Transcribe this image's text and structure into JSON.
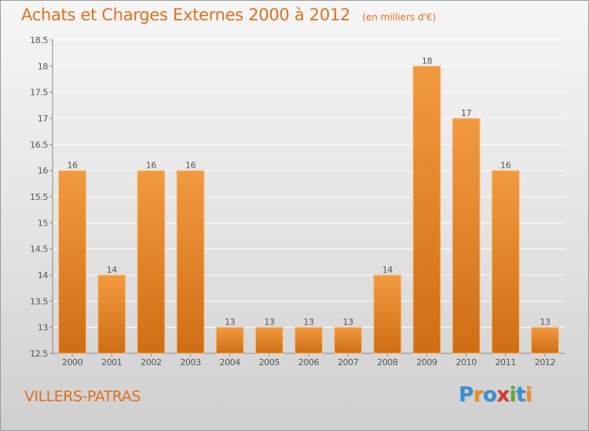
{
  "title": "Achats et Charges Externes 2000 à 2012",
  "unit_note": "(en milliers d'€)",
  "place": "VILLERS-PATRAS",
  "brand": {
    "letters": [
      "P",
      "r",
      "o",
      "x",
      "i",
      "t",
      "i"
    ],
    "colors": [
      "#3a8fd0",
      "#f08c1c",
      "#3a8fd0",
      "#d83a2a",
      "#5db030",
      "#3a8fd0",
      "#f08c1c"
    ]
  },
  "chart_data": {
    "type": "bar",
    "categories": [
      "2000",
      "2001",
      "2002",
      "2003",
      "2004",
      "2005",
      "2006",
      "2007",
      "2008",
      "2009",
      "2010",
      "2011",
      "2012"
    ],
    "values": [
      16,
      14,
      16,
      16,
      13,
      13,
      13,
      13,
      14,
      18,
      17,
      16,
      13
    ],
    "value_labels": [
      "16",
      "14",
      "16",
      "16",
      "13",
      "13",
      "13",
      "13",
      "14",
      "18",
      "17",
      "16",
      "13"
    ],
    "ylim": [
      12.5,
      18.5
    ],
    "yticks": [
      12.5,
      13,
      13.5,
      14,
      14.5,
      15,
      15.5,
      16,
      16.5,
      17,
      17.5,
      18,
      18.5
    ],
    "grid": true,
    "bar_color": "#f29a40",
    "bar_color_dark": "#d06e14"
  }
}
